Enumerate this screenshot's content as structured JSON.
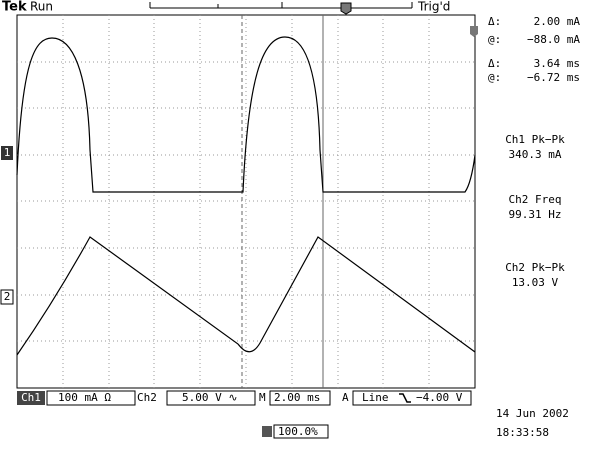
{
  "header": {
    "brand": "Tek",
    "state": "Run",
    "trigger": "Trig'd"
  },
  "cursor_readouts": [
    {
      "label": "Δ:",
      "value": "2.00 mA"
    },
    {
      "label": "@:",
      "value": "−88.0 mA"
    },
    {
      "label": "Δ:",
      "value": "3.64 ms"
    },
    {
      "label": "@:",
      "value": "−6.72 ms"
    }
  ],
  "measurements": [
    {
      "name": "Ch1 Pk−Pk",
      "value": "340.3 mA"
    },
    {
      "name": "Ch2 Freq",
      "value": "99.31 Hz"
    },
    {
      "name": "Ch2 Pk−Pk",
      "value": "13.03  V"
    }
  ],
  "channel_markers": [
    "1",
    "2"
  ],
  "status_bar": {
    "ch1": "Ch1",
    "ch1_scale": "100 mA Ω",
    "ch2": "Ch2",
    "ch2_scale": "5.00 V ∿",
    "timebase_label": "M",
    "timebase": "2.00 ms",
    "trigger_label": "A",
    "trigger_source": "Line",
    "trigger_level": "−4.00 V"
  },
  "trigger_position": "100.0%",
  "date": "14 Jun  2002",
  "time": "18:33:58"
}
